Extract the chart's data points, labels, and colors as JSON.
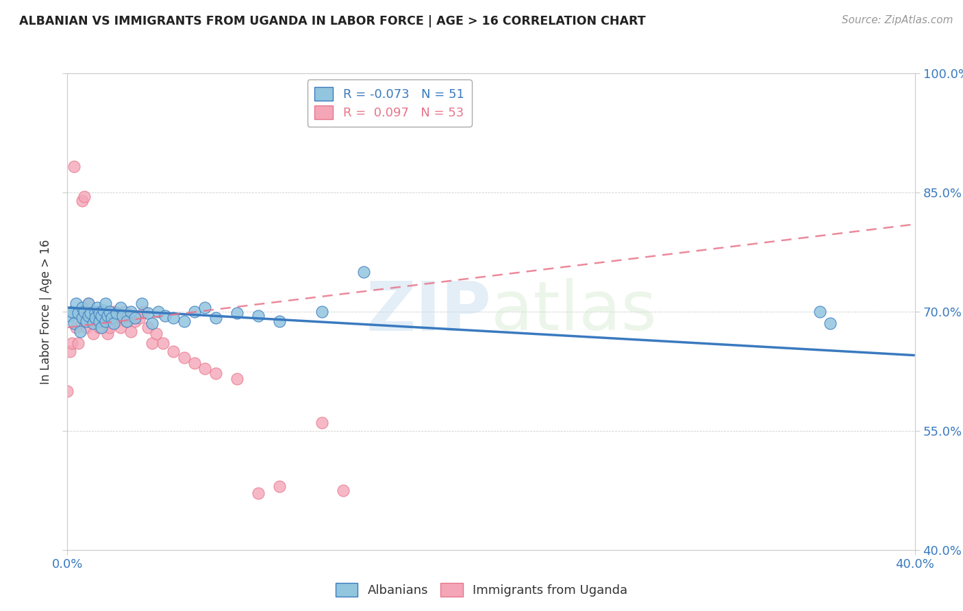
{
  "title": "ALBANIAN VS IMMIGRANTS FROM UGANDA IN LABOR FORCE | AGE > 16 CORRELATION CHART",
  "source": "Source: ZipAtlas.com",
  "ylabel": "In Labor Force | Age > 16",
  "xlim": [
    0.0,
    0.4
  ],
  "ylim": [
    0.4,
    1.0
  ],
  "yticks": [
    0.4,
    0.55,
    0.7,
    0.85,
    1.0
  ],
  "ytick_labels": [
    "40.0%",
    "55.0%",
    "70.0%",
    "85.0%",
    "100.0%"
  ],
  "xtick_left_label": "0.0%",
  "xtick_right_label": "40.0%",
  "legend_blue_label": "Albanians",
  "legend_pink_label": "Immigrants from Uganda",
  "R_blue": -0.073,
  "N_blue": 51,
  "R_pink": 0.097,
  "N_pink": 53,
  "blue_color": "#92c5de",
  "pink_color": "#f4a6b8",
  "blue_line_color": "#3a7abf",
  "pink_line_color": "#e8748a",
  "watermark_zip": "ZIP",
  "watermark_atlas": "atlas",
  "blue_scatter_x": [
    0.001,
    0.002,
    0.003,
    0.004,
    0.005,
    0.006,
    0.007,
    0.007,
    0.008,
    0.009,
    0.01,
    0.01,
    0.011,
    0.012,
    0.013,
    0.013,
    0.014,
    0.015,
    0.015,
    0.016,
    0.016,
    0.017,
    0.018,
    0.018,
    0.019,
    0.02,
    0.021,
    0.022,
    0.023,
    0.025,
    0.026,
    0.028,
    0.03,
    0.032,
    0.035,
    0.038,
    0.04,
    0.043,
    0.046,
    0.05,
    0.055,
    0.06,
    0.065,
    0.07,
    0.08,
    0.09,
    0.1,
    0.12,
    0.14,
    0.355,
    0.36
  ],
  "blue_scatter_y": [
    0.695,
    0.7,
    0.685,
    0.71,
    0.698,
    0.675,
    0.705,
    0.692,
    0.7,
    0.688,
    0.695,
    0.71,
    0.698,
    0.685,
    0.7,
    0.692,
    0.705,
    0.688,
    0.698,
    0.695,
    0.68,
    0.702,
    0.71,
    0.688,
    0.695,
    0.7,
    0.692,
    0.685,
    0.698,
    0.705,
    0.695,
    0.688,
    0.7,
    0.692,
    0.71,
    0.698,
    0.685,
    0.7,
    0.695,
    0.692,
    0.688,
    0.7,
    0.705,
    0.692,
    0.698,
    0.695,
    0.688,
    0.7,
    0.75,
    0.7,
    0.685
  ],
  "pink_scatter_x": [
    0.0,
    0.001,
    0.002,
    0.003,
    0.004,
    0.005,
    0.006,
    0.007,
    0.008,
    0.008,
    0.009,
    0.01,
    0.01,
    0.011,
    0.012,
    0.012,
    0.013,
    0.014,
    0.015,
    0.015,
    0.016,
    0.017,
    0.018,
    0.018,
    0.019,
    0.02,
    0.021,
    0.022,
    0.023,
    0.024,
    0.025,
    0.026,
    0.027,
    0.028,
    0.029,
    0.03,
    0.032,
    0.034,
    0.036,
    0.038,
    0.04,
    0.042,
    0.045,
    0.05,
    0.055,
    0.06,
    0.065,
    0.07,
    0.08,
    0.09,
    0.1,
    0.12,
    0.13
  ],
  "pink_scatter_y": [
    0.6,
    0.65,
    0.66,
    0.883,
    0.68,
    0.66,
    0.695,
    0.84,
    0.7,
    0.845,
    0.68,
    0.695,
    0.71,
    0.688,
    0.7,
    0.672,
    0.695,
    0.688,
    0.7,
    0.68,
    0.692,
    0.7,
    0.688,
    0.695,
    0.672,
    0.68,
    0.695,
    0.7,
    0.688,
    0.695,
    0.68,
    0.692,
    0.7,
    0.688,
    0.695,
    0.675,
    0.688,
    0.692,
    0.7,
    0.68,
    0.66,
    0.672,
    0.66,
    0.65,
    0.642,
    0.635,
    0.628,
    0.622,
    0.615,
    0.471,
    0.48,
    0.56,
    0.475
  ]
}
